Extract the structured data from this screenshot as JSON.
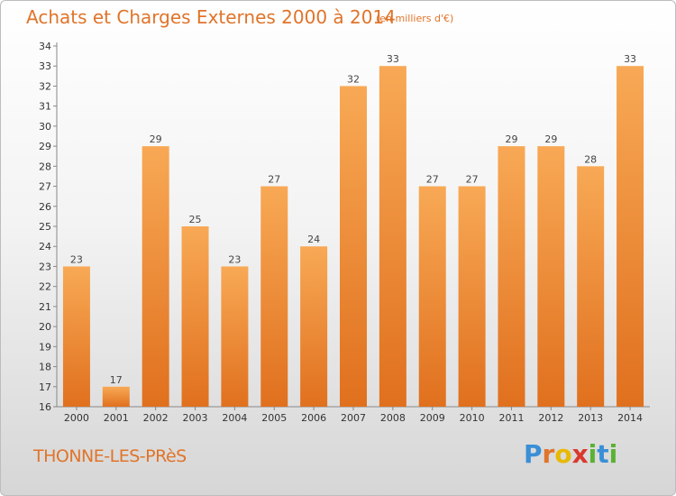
{
  "title": "Achats et Charges Externes 2000 à 2014",
  "subtitle": "(en milliers d'€)",
  "commune": "THONNE-LES-PRèS",
  "logo": {
    "letters": [
      "P",
      "r",
      "o",
      "x",
      "i",
      "t",
      "i"
    ],
    "colors": [
      "#3a8fd6",
      "#e0742a",
      "#e8b900",
      "#d9392c",
      "#5ab233",
      "#3a8fd6",
      "#5ab233"
    ]
  },
  "colors": {
    "bar_light": "#f8a955",
    "bar_dark": "#e0701e",
    "title": "#e0742a"
  },
  "chart_data": {
    "type": "bar",
    "title": "Achats et Charges Externes 2000 à 2014",
    "subtitle": "(en milliers d'€)",
    "xlabel": "",
    "ylabel": "",
    "categories": [
      "2000",
      "2001",
      "2002",
      "2003",
      "2004",
      "2005",
      "2006",
      "2007",
      "2008",
      "2009",
      "2010",
      "2011",
      "2012",
      "2013",
      "2014"
    ],
    "values": [
      23,
      17,
      29,
      25,
      23,
      27,
      24,
      32,
      33,
      27,
      27,
      29,
      29,
      28,
      33
    ],
    "ylim": [
      16,
      34
    ],
    "yticks": [
      16,
      17,
      18,
      19,
      20,
      21,
      22,
      23,
      24,
      25,
      26,
      27,
      28,
      29,
      30,
      31,
      32,
      33,
      34
    ],
    "grid": false,
    "legend": "none"
  }
}
